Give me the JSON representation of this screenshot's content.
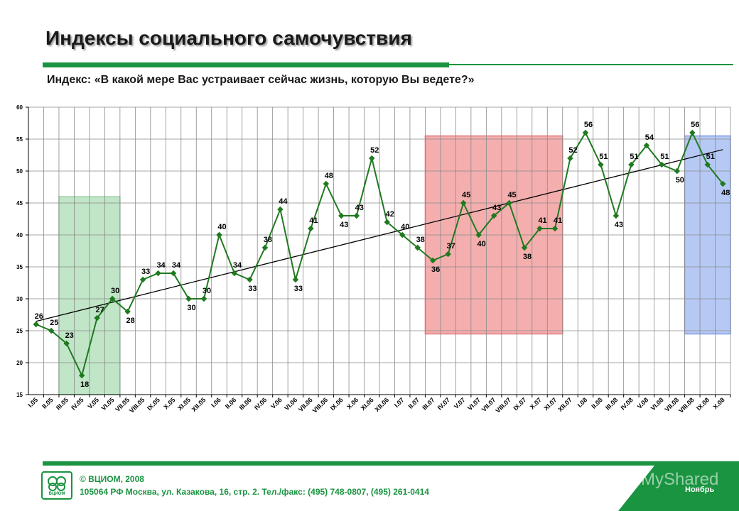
{
  "header": {
    "title": "Индексы социального самочувствия",
    "subtitle": "Индекс: «В какой мере Вас устраивает сейчас жизнь, которую Вы ведете?»"
  },
  "footer": {
    "copyright": "© ВЦИОМ, 2008",
    "address": "105064 РФ Москва, ул. Казакова, 16, стр. 2. Тел./факс: (495) 748-0807, (495) 261-0414",
    "logo_text": "ВЦИОМ",
    "watermark": "MyShared",
    "month": "Ноябрь"
  },
  "colors": {
    "line": "#1f7a1f",
    "marker": "#1f7a1f",
    "trend": "#000000",
    "highlight_green": "#b5e0bd",
    "highlight_red": "#f2a0a0",
    "highlight_blue": "#a9bff2",
    "brand": "#1a9440"
  },
  "chart_data": {
    "type": "line",
    "ylim": [
      15,
      60
    ],
    "yticks": [
      15,
      20,
      25,
      30,
      35,
      40,
      45,
      50,
      55,
      60
    ],
    "grid": true,
    "trendline": true,
    "categories": [
      "I.05",
      "II.05",
      "III.05",
      "IV.05",
      "V.05",
      "VI.05",
      "VII.05",
      "VIII.05",
      "IX.05",
      "X.05",
      "XI.05",
      "XII.05",
      "I.06",
      "II.06",
      "III.06",
      "IV.06",
      "V.06",
      "VI.06",
      "VII.06",
      "VIII.06",
      "IX.06",
      "X.06",
      "XI.06",
      "XII.06",
      "I.07",
      "II.07",
      "III.07",
      "IV.07",
      "V.07",
      "VI.07",
      "VII.07",
      "VIII.07",
      "IX.07",
      "X.07",
      "XI.07",
      "XII.07",
      "I.08",
      "II.08",
      "III.08",
      "IV.08",
      "V.08",
      "VI.08",
      "VII.08",
      "VIII.08",
      "IX.08",
      "X.08"
    ],
    "tick_labels": [
      "I.05",
      "II.05",
      "III.05",
      "IV.05",
      "V.05",
      "VI.05",
      "VII.05",
      "VIII.05",
      "IX.05",
      "X.05",
      "XI.05",
      "XII.05",
      "I.06",
      "II.06",
      "III.06",
      "IV.06",
      "V.06",
      "VI.06",
      "VII.06",
      "VIII.06",
      "IX.06",
      "X.06",
      "XI.06",
      "XII.06",
      "I.07",
      "II.07",
      "III.07",
      "IV.07",
      "V.07",
      "VI.07",
      "VII.07",
      "VIII.07",
      "IX.07",
      "X.07",
      "XI.07",
      "XII.07",
      "I.08",
      "II.08",
      "III.08",
      "IV.08",
      "V.08",
      "VI.08",
      "VII.08",
      "VIII.08",
      "IX.08",
      "X.08"
    ],
    "values": [
      26,
      25,
      23,
      18,
      27,
      30,
      28,
      33,
      34,
      34,
      30,
      30,
      40,
      34,
      33,
      38,
      44,
      33,
      41,
      48,
      43,
      43,
      52,
      42,
      40,
      38,
      36,
      37,
      45,
      40,
      43,
      45,
      38,
      41,
      41,
      52,
      56,
      51,
      43,
      51,
      54,
      51,
      50,
      56,
      51,
      48
    ],
    "highlights": [
      {
        "color": "green",
        "x_from": "III.05",
        "x_to": "VI.05",
        "y_from": 15,
        "y_to": 46
      },
      {
        "color": "red",
        "x_from": "III.07",
        "x_to": "XI.07",
        "y_from": 24.5,
        "y_to": 55.5
      },
      {
        "color": "blue",
        "x_from": "VIII.08",
        "x_to": "X.08",
        "y_from": 24.5,
        "y_to": 55.5
      }
    ]
  }
}
